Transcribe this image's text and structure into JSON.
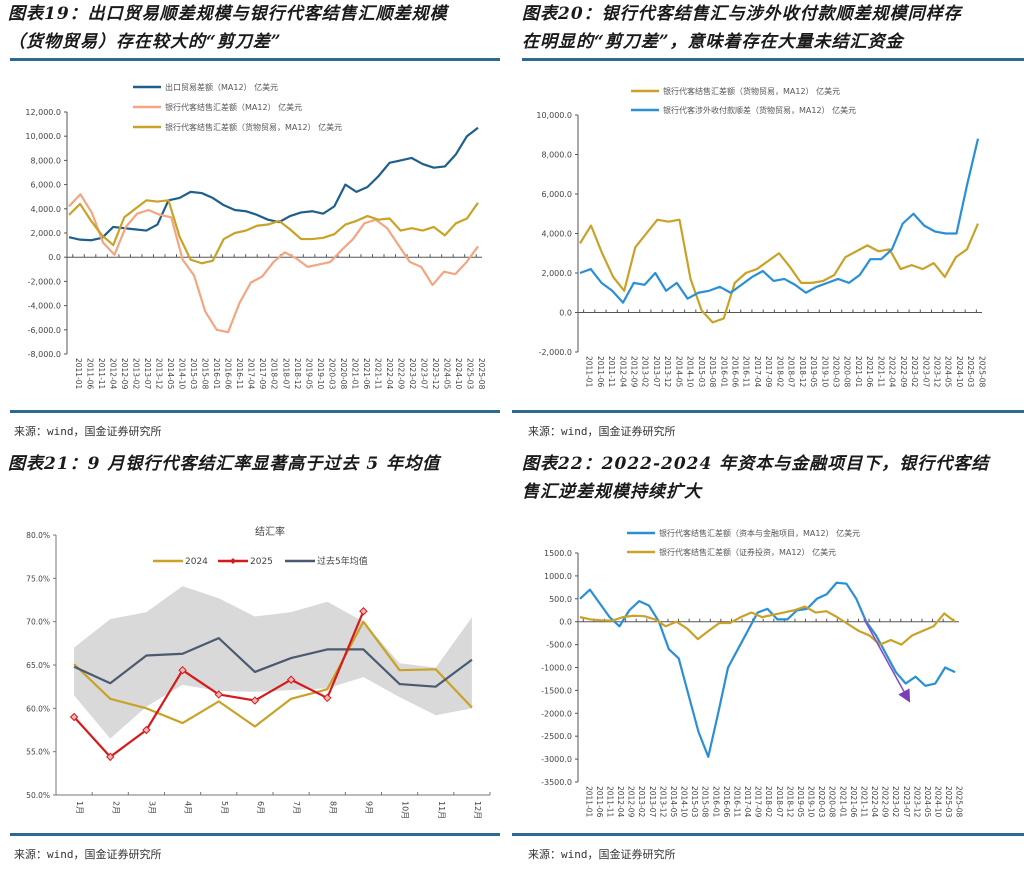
{
  "source_note": "来源：wind，国金证券研究所",
  "chart_data": [
    {
      "id": "fig19",
      "type": "line",
      "title_line1": "图表19：出口贸易顺差规模与银行代客结售汇顺差规模",
      "title_line2": "（货物贸易）存在较大的“剪刀差”",
      "ylim": [
        -8000,
        12000
      ],
      "yticks": [
        "12,000.0",
        "10,000.0",
        "8,000.0",
        "6,000.0",
        "4,000.0",
        "2,000.0",
        "0.0",
        "-2,000.0",
        "-4,000.0",
        "-6,000.0",
        "-8,000.0"
      ],
      "xticks": [
        "2011-01",
        "2011-06",
        "2011-11",
        "2012-04",
        "2012-09",
        "2013-02",
        "2013-07",
        "2013-12",
        "2014-05",
        "2014-10",
        "2015-03",
        "2015-08",
        "2016-01",
        "2016-06",
        "2016-11",
        "2017-04",
        "2017-09",
        "2018-02",
        "2018-07",
        "2018-12",
        "2019-05",
        "2019-10",
        "2020-03",
        "2020-08",
        "2021-01",
        "2021-06",
        "2021-11",
        "2022-04",
        "2022-09",
        "2023-02",
        "2023-07",
        "2023-12",
        "2024-05",
        "2024-10",
        "2025-03",
        "2025-08"
      ],
      "series": [
        {
          "name": "出口贸易差额（MA12） 亿美元",
          "color": "#1f5f8b",
          "values": [
            1650,
            1450,
            1400,
            1600,
            2500,
            2400,
            2300,
            2200,
            2700,
            4700,
            4900,
            5400,
            5300,
            4900,
            4300,
            3900,
            3800,
            3500,
            3100,
            2900,
            3400,
            3700,
            3800,
            3600,
            4200,
            6000,
            5400,
            5800,
            6700,
            7800,
            8000,
            8200,
            7700,
            7400,
            7500,
            8500,
            10000,
            10700
          ]
        },
        {
          "name": "银行代客结售汇差额（MA12） 亿美元",
          "color": "#f4a582",
          "values": [
            4200,
            5200,
            3700,
            1200,
            200,
            2500,
            3600,
            3900,
            3500,
            3300,
            -200,
            -1500,
            -4500,
            -6000,
            -6200,
            -3800,
            -2100,
            -1600,
            -400,
            400,
            -100,
            -800,
            -600,
            -400,
            600,
            1500,
            2800,
            3100,
            2400,
            1000,
            -400,
            -800,
            -2300,
            -1200,
            -1400,
            -400,
            900
          ]
        },
        {
          "name": "银行代客结售汇差额（货物贸易，MA12） 亿美元",
          "color": "#c9a227",
          "values": [
            3500,
            4400,
            3000,
            1800,
            1000,
            3300,
            4000,
            4700,
            4600,
            4700,
            1700,
            -200,
            -500,
            -300,
            1500,
            2000,
            2200,
            2600,
            2700,
            3000,
            2300,
            1500,
            1500,
            1600,
            1900,
            2700,
            3000,
            3400,
            3100,
            3200,
            2200,
            2400,
            2200,
            2500,
            1800,
            2800,
            3200,
            4500
          ]
        }
      ]
    },
    {
      "id": "fig20",
      "type": "line",
      "title_line1": "图表20：银行代客结售汇与涉外收付款顺差规模同样存",
      "title_line2": "在明显的“剪刀差”，意味着存在大量未结汇资金",
      "ylim": [
        -2000,
        10000
      ],
      "yticks": [
        "10,000.0",
        "8,000.0",
        "6,000.0",
        "4,000.0",
        "2,000.0",
        "0.0",
        "-2,000.0"
      ],
      "xticks": [
        "2011-01",
        "2011-06",
        "2011-11",
        "2012-04",
        "2012-09",
        "2013-02",
        "2013-07",
        "2013-12",
        "2014-05",
        "2014-10",
        "2015-03",
        "2015-08",
        "2016-01",
        "2016-06",
        "2016-11",
        "2017-04",
        "2017-09",
        "2018-02",
        "2018-07",
        "2018-12",
        "2019-05",
        "2019-10",
        "2020-03",
        "2020-08",
        "2021-01",
        "2021-06",
        "2021-11",
        "2022-04",
        "2022-09",
        "2023-02",
        "2023-07",
        "2023-12",
        "2024-05",
        "2024-10",
        "2025-03",
        "2025-08"
      ],
      "series": [
        {
          "name": "银行代客结售汇差额（货物贸易，MA12） 亿美元",
          "color": "#c9a227",
          "values": [
            3500,
            4400,
            3000,
            1800,
            1100,
            3300,
            4000,
            4700,
            4600,
            4700,
            1700,
            100,
            -500,
            -300,
            1500,
            2000,
            2200,
            2600,
            3000,
            2300,
            1500,
            1500,
            1600,
            1900,
            2800,
            3100,
            3400,
            3100,
            3200,
            2200,
            2400,
            2200,
            2500,
            1800,
            2800,
            3200,
            4500
          ]
        },
        {
          "name": "银行代客涉外收付款顺差（货物贸易，MA12） 亿美元",
          "color": "#2a8fd6",
          "values": [
            2000,
            2200,
            1500,
            1100,
            500,
            1500,
            1400,
            2000,
            1100,
            1500,
            700,
            1000,
            1100,
            1300,
            1000,
            1400,
            1800,
            2100,
            1600,
            1700,
            1400,
            1000,
            1300,
            1500,
            1700,
            1500,
            1900,
            2700,
            2700,
            3200,
            4500,
            5000,
            4400,
            4100,
            4000,
            4000,
            6500,
            8800
          ]
        }
      ]
    },
    {
      "id": "fig21",
      "type": "line",
      "title_line1": "图表21：9 月银行代客结汇率显著高于过去 5 年均值",
      "inner_title": "结汇率",
      "ylim": [
        50,
        80
      ],
      "yticks": [
        "80.0%",
        "75.0%",
        "70.0%",
        "65.0%",
        "60.0%",
        "55.0%",
        "50.0%"
      ],
      "categories": [
        "1月",
        "2月",
        "3月",
        "4月",
        "5月",
        "6月",
        "7月",
        "8月",
        "9月",
        "10月",
        "11月",
        "12月"
      ],
      "band": {
        "upper": [
          67.0,
          70.3,
          71.1,
          74.1,
          72.7,
          70.6,
          71.1,
          72.3,
          70.0,
          65.2,
          64.7,
          70.5
        ],
        "lower": [
          61.5,
          56.5,
          60.2,
          62.7,
          62.0,
          61.9,
          62.1,
          62.3,
          63.6,
          61.3,
          59.2,
          60.0
        ]
      },
      "series": [
        {
          "name": "2024",
          "color": "#c9a227",
          "values": [
            65.1,
            61.1,
            60.0,
            58.3,
            60.8,
            57.9,
            61.1,
            62.2,
            70.0,
            64.4,
            64.5,
            60.1
          ]
        },
        {
          "name": "2025",
          "color": "#d7191c",
          "marker": "diamond",
          "values": [
            59.0,
            54.4,
            57.5,
            64.4,
            61.6,
            60.9,
            63.3,
            61.2,
            71.2
          ]
        },
        {
          "name": "过去5年均值",
          "color": "#4a5a70",
          "values": [
            64.8,
            62.9,
            66.1,
            66.3,
            68.1,
            64.2,
            65.8,
            66.8,
            66.8,
            62.8,
            62.5,
            65.6
          ]
        }
      ]
    },
    {
      "id": "fig22",
      "type": "line",
      "title_line1": "图表22：2022-2024 年资本与金融项目下，银行代客结",
      "title_line2": "售汇逆差规模持续扩大",
      "ylim": [
        -3500,
        1500
      ],
      "yticks": [
        "1500.0",
        "1000.0",
        "500.0",
        "0.0",
        "-500.0",
        "-1000.0",
        "-1500.0",
        "-2000.0",
        "-2500.0",
        "-3000.0",
        "-3500.0"
      ],
      "xticks": [
        "2011-01",
        "2011-06",
        "2011-11",
        "2012-04",
        "2012-09",
        "2013-02",
        "2013-07",
        "2013-12",
        "2014-05",
        "2014-10",
        "2015-03",
        "2015-08",
        "2016-01",
        "2016-06",
        "2016-11",
        "2017-04",
        "2017-09",
        "2018-02",
        "2018-07",
        "2018-12",
        "2019-05",
        "2019-10",
        "2020-03",
        "2020-08",
        "2021-01",
        "2021-06",
        "2021-11",
        "2022-04",
        "2022-09",
        "2023-02",
        "2023-07",
        "2023-12",
        "2024-05",
        "2024-10",
        "2025-03",
        "2025-08"
      ],
      "series": [
        {
          "name": "银行代客结售汇差额（资本与金融项目，MA12） 亿美元",
          "color": "#2a8fd6",
          "values": [
            500,
            700,
            400,
            100,
            -100,
            250,
            450,
            350,
            0,
            -600,
            -800,
            -1600,
            -2400,
            -2950,
            -2000,
            -1000,
            -600,
            -200,
            200,
            280,
            50,
            50,
            250,
            280,
            500,
            600,
            850,
            830,
            500,
            0,
            -300,
            -700,
            -1100,
            -1350,
            -1200,
            -1400,
            -1350,
            -1000,
            -1100
          ]
        },
        {
          "name": "银行代客结售汇差额（证券投资，MA12） 亿美元",
          "color": "#c9a227",
          "values": [
            100,
            50,
            30,
            20,
            100,
            130,
            120,
            50,
            -100,
            0,
            -150,
            -380,
            -200,
            -30,
            -30,
            100,
            200,
            100,
            150,
            200,
            250,
            330,
            200,
            230,
            100,
            -50,
            -200,
            -300,
            -500,
            -400,
            -500,
            -300,
            -200,
            -100,
            180,
            0
          ]
        }
      ],
      "annotation": "arrow-down-trend"
    }
  ]
}
